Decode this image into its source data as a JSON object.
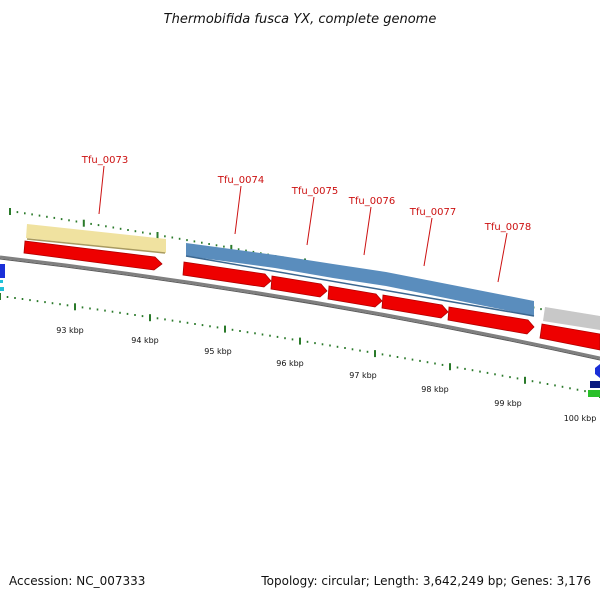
{
  "title": "Thermobifida fusca YX, complete genome",
  "gene_labels": [
    "Tfu_0073",
    "Tfu_0074",
    "Tfu_0075",
    "Tfu_0076",
    "Tfu_0077",
    "Tfu_0078"
  ],
  "position_labels": [
    "93 kbp",
    "94 kbp",
    "95 kbp",
    "96 kbp",
    "97 kbp",
    "98 kbp",
    "99 kbp",
    "100 kbp"
  ],
  "footer": {
    "accession": "Accession: NC_007333",
    "summary": "Topology: circular; Length: 3,642,249 bp; Genes: 3,176"
  },
  "colors": {
    "cds_arrow": "#ee0000",
    "feature_blue": "#5a8dbd",
    "feature_yellow": "#f0e2a0",
    "feature_gray": "#c8c8c8",
    "tick_green": "#2a7a2a",
    "backbone": "#808080",
    "label_red": "#cc1111"
  }
}
